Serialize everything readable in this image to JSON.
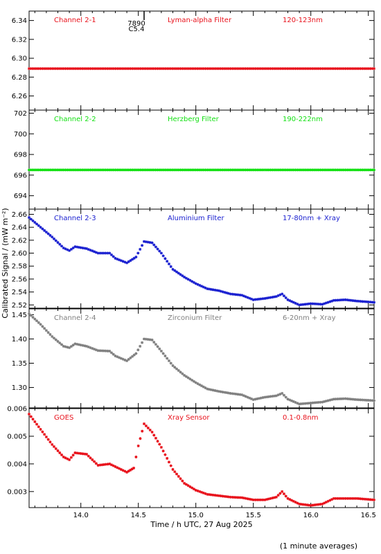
{
  "x_axis_label": "Time / h UTC, 27 Aug 2025",
  "y_axis_label": "Calibrated Signal / (mW m⁻²)",
  "footnote": "(1 minute averages)",
  "x_ticks": [
    "14.0",
    "14.5",
    "15.0",
    "15.5",
    "16.0",
    "16.5"
  ],
  "flare_annotation": {
    "time": "7890",
    "class": "C5.4",
    "x": 14.55
  },
  "chart_data": [
    {
      "type": "scatter",
      "xlim": [
        13.55,
        16.55
      ],
      "ylim": [
        6.245,
        6.35
      ],
      "yticks": [
        "6.26",
        "6.28",
        "6.30",
        "6.32",
        "6.34"
      ],
      "ytick_values": [
        6.26,
        6.28,
        6.3,
        6.32,
        6.34
      ],
      "color": "#e8101a",
      "labels": [
        "Channel 2-1",
        "Lyman-alpha Filter",
        "120-123nm"
      ],
      "x": [
        13.55,
        16.55
      ],
      "y": [
        6.289,
        6.289
      ]
    },
    {
      "type": "scatter",
      "xlim": [
        13.55,
        16.55
      ],
      "ylim": [
        692.7,
        702.3
      ],
      "yticks": [
        "694",
        "696",
        "698",
        "700",
        "702"
      ],
      "ytick_values": [
        694,
        696,
        698,
        700,
        702
      ],
      "color": "#12e012",
      "labels": [
        "Channel 2-2",
        "Herzberg Filter",
        "190-222nm"
      ],
      "x": [
        13.55,
        16.55
      ],
      "y": [
        696.5,
        696.5
      ]
    },
    {
      "type": "scatter",
      "xlim": [
        13.55,
        16.55
      ],
      "ylim": [
        2.515,
        2.668
      ],
      "yticks": [
        "2.52",
        "2.54",
        "2.56",
        "2.58",
        "2.60",
        "2.62",
        "2.64",
        "2.66"
      ],
      "ytick_values": [
        2.52,
        2.54,
        2.56,
        2.58,
        2.6,
        2.62,
        2.64,
        2.66
      ],
      "color": "#1a20d0",
      "labels": [
        "Channel 2-3",
        "Aluminium Filter",
        "17-80nm + Xray"
      ],
      "x": [
        13.55,
        13.65,
        13.75,
        13.85,
        13.9,
        13.95,
        14.05,
        14.15,
        14.25,
        14.3,
        14.4,
        14.48,
        14.55,
        14.62,
        14.7,
        14.8,
        14.9,
        15.0,
        15.1,
        15.2,
        15.3,
        15.4,
        15.5,
        15.6,
        15.7,
        15.75,
        15.8,
        15.9,
        16.0,
        16.1,
        16.2,
        16.3,
        16.4,
        16.55
      ],
      "y": [
        2.655,
        2.64,
        2.625,
        2.608,
        2.604,
        2.61,
        2.607,
        2.6,
        2.6,
        2.592,
        2.585,
        2.594,
        2.618,
        2.616,
        2.6,
        2.575,
        2.563,
        2.553,
        2.545,
        2.542,
        2.537,
        2.535,
        2.528,
        2.53,
        2.533,
        2.537,
        2.528,
        2.52,
        2.522,
        2.521,
        2.527,
        2.528,
        2.526,
        2.524
      ]
    },
    {
      "type": "scatter",
      "xlim": [
        13.55,
        16.55
      ],
      "ylim": [
        1.258,
        1.462
      ],
      "yticks": [
        "1.30",
        "1.35",
        "1.40",
        "1.45"
      ],
      "ytick_values": [
        1.3,
        1.35,
        1.4,
        1.45
      ],
      "color": "#808080",
      "labels": [
        "Channel 2-4",
        "Zirconium Filter",
        "6-20nm + Xray"
      ],
      "x": [
        13.55,
        13.65,
        13.75,
        13.85,
        13.9,
        13.95,
        14.05,
        14.15,
        14.25,
        14.3,
        14.4,
        14.48,
        14.55,
        14.62,
        14.7,
        14.8,
        14.9,
        15.0,
        15.1,
        15.2,
        15.3,
        15.4,
        15.5,
        15.6,
        15.7,
        15.75,
        15.8,
        15.9,
        16.0,
        16.1,
        16.2,
        16.3,
        16.4,
        16.55
      ],
      "y": [
        1.452,
        1.43,
        1.405,
        1.385,
        1.382,
        1.39,
        1.385,
        1.376,
        1.375,
        1.365,
        1.355,
        1.37,
        1.4,
        1.398,
        1.375,
        1.345,
        1.325,
        1.31,
        1.297,
        1.292,
        1.288,
        1.285,
        1.275,
        1.28,
        1.283,
        1.288,
        1.276,
        1.266,
        1.268,
        1.27,
        1.276,
        1.277,
        1.275,
        1.273
      ]
    },
    {
      "type": "scatter",
      "xlim": [
        13.55,
        16.55
      ],
      "ylim": [
        0.00242,
        0.006
      ],
      "yticks": [
        "0.003",
        "0.004",
        "0.005",
        "0.006"
      ],
      "ytick_values": [
        0.003,
        0.004,
        0.005,
        0.006
      ],
      "color": "#e8101a",
      "labels": [
        "GOES",
        "Xray Sensor",
        "0.1-0.8nm"
      ],
      "x": [
        13.55,
        13.65,
        13.75,
        13.85,
        13.9,
        13.95,
        14.05,
        14.15,
        14.25,
        14.3,
        14.4,
        14.46,
        14.5,
        14.55,
        14.62,
        14.7,
        14.8,
        14.9,
        15.0,
        15.1,
        15.2,
        15.3,
        15.4,
        15.5,
        15.6,
        15.7,
        15.75,
        15.8,
        15.9,
        16.0,
        16.1,
        16.2,
        16.3,
        16.4,
        16.55
      ],
      "y": [
        0.0058,
        0.00525,
        0.0047,
        0.00425,
        0.00415,
        0.0044,
        0.00435,
        0.00395,
        0.004,
        0.0039,
        0.0037,
        0.00385,
        0.00465,
        0.00545,
        0.00515,
        0.0046,
        0.0038,
        0.0033,
        0.00305,
        0.0029,
        0.00285,
        0.0028,
        0.00278,
        0.0027,
        0.0027,
        0.0028,
        0.003,
        0.00275,
        0.00255,
        0.0025,
        0.00255,
        0.00275,
        0.00275,
        0.00275,
        0.0027
      ]
    }
  ]
}
